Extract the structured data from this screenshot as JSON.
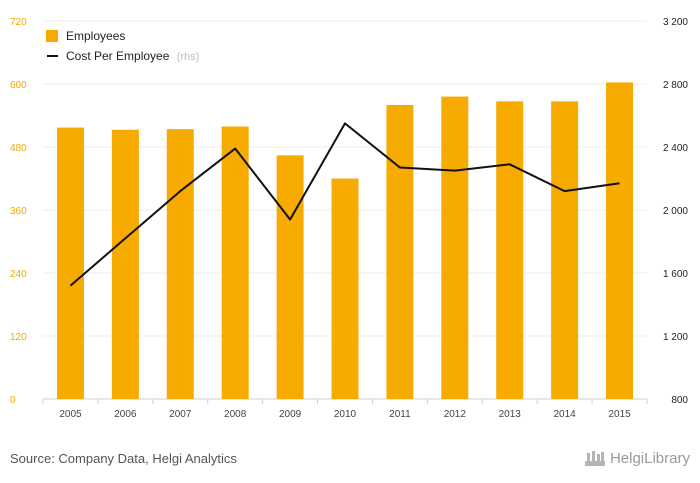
{
  "chart_data": {
    "type": "bar",
    "categories": [
      "2005",
      "2006",
      "2007",
      "2008",
      "2009",
      "2010",
      "2011",
      "2012",
      "2013",
      "2014",
      "2015"
    ],
    "series": [
      {
        "name": "Employees",
        "type": "bar",
        "axis": "left",
        "color": "#f7ab00",
        "values": [
          517,
          513,
          514,
          519,
          464,
          420,
          560,
          576,
          567,
          567,
          603
        ]
      },
      {
        "name": "Cost Per Employee",
        "name_suffix": "(rhs)",
        "type": "line",
        "axis": "right",
        "color": "#111111",
        "values": [
          1520,
          1820,
          2120,
          2390,
          1940,
          2550,
          2270,
          2250,
          2290,
          2120,
          2170
        ]
      }
    ],
    "left_axis": {
      "min": 0,
      "max": 720,
      "ticks": [
        0,
        120,
        240,
        360,
        480,
        600,
        720
      ],
      "tick_labels": [
        "0",
        "120",
        "240",
        "360",
        "480",
        "600",
        "720"
      ]
    },
    "right_axis": {
      "min": 800,
      "max": 3200,
      "ticks": [
        800,
        1200,
        1600,
        2000,
        2400,
        2800,
        3200
      ],
      "tick_labels": [
        "800",
        "1 200",
        "1 600",
        "2 000",
        "2 400",
        "2 800",
        "3 200"
      ]
    },
    "grid": "horizontal",
    "legend_position": "top-left"
  },
  "footer": {
    "source": "Source: Company Data, Helgi Analytics"
  },
  "brand": {
    "name": "HelgiLibrary"
  }
}
